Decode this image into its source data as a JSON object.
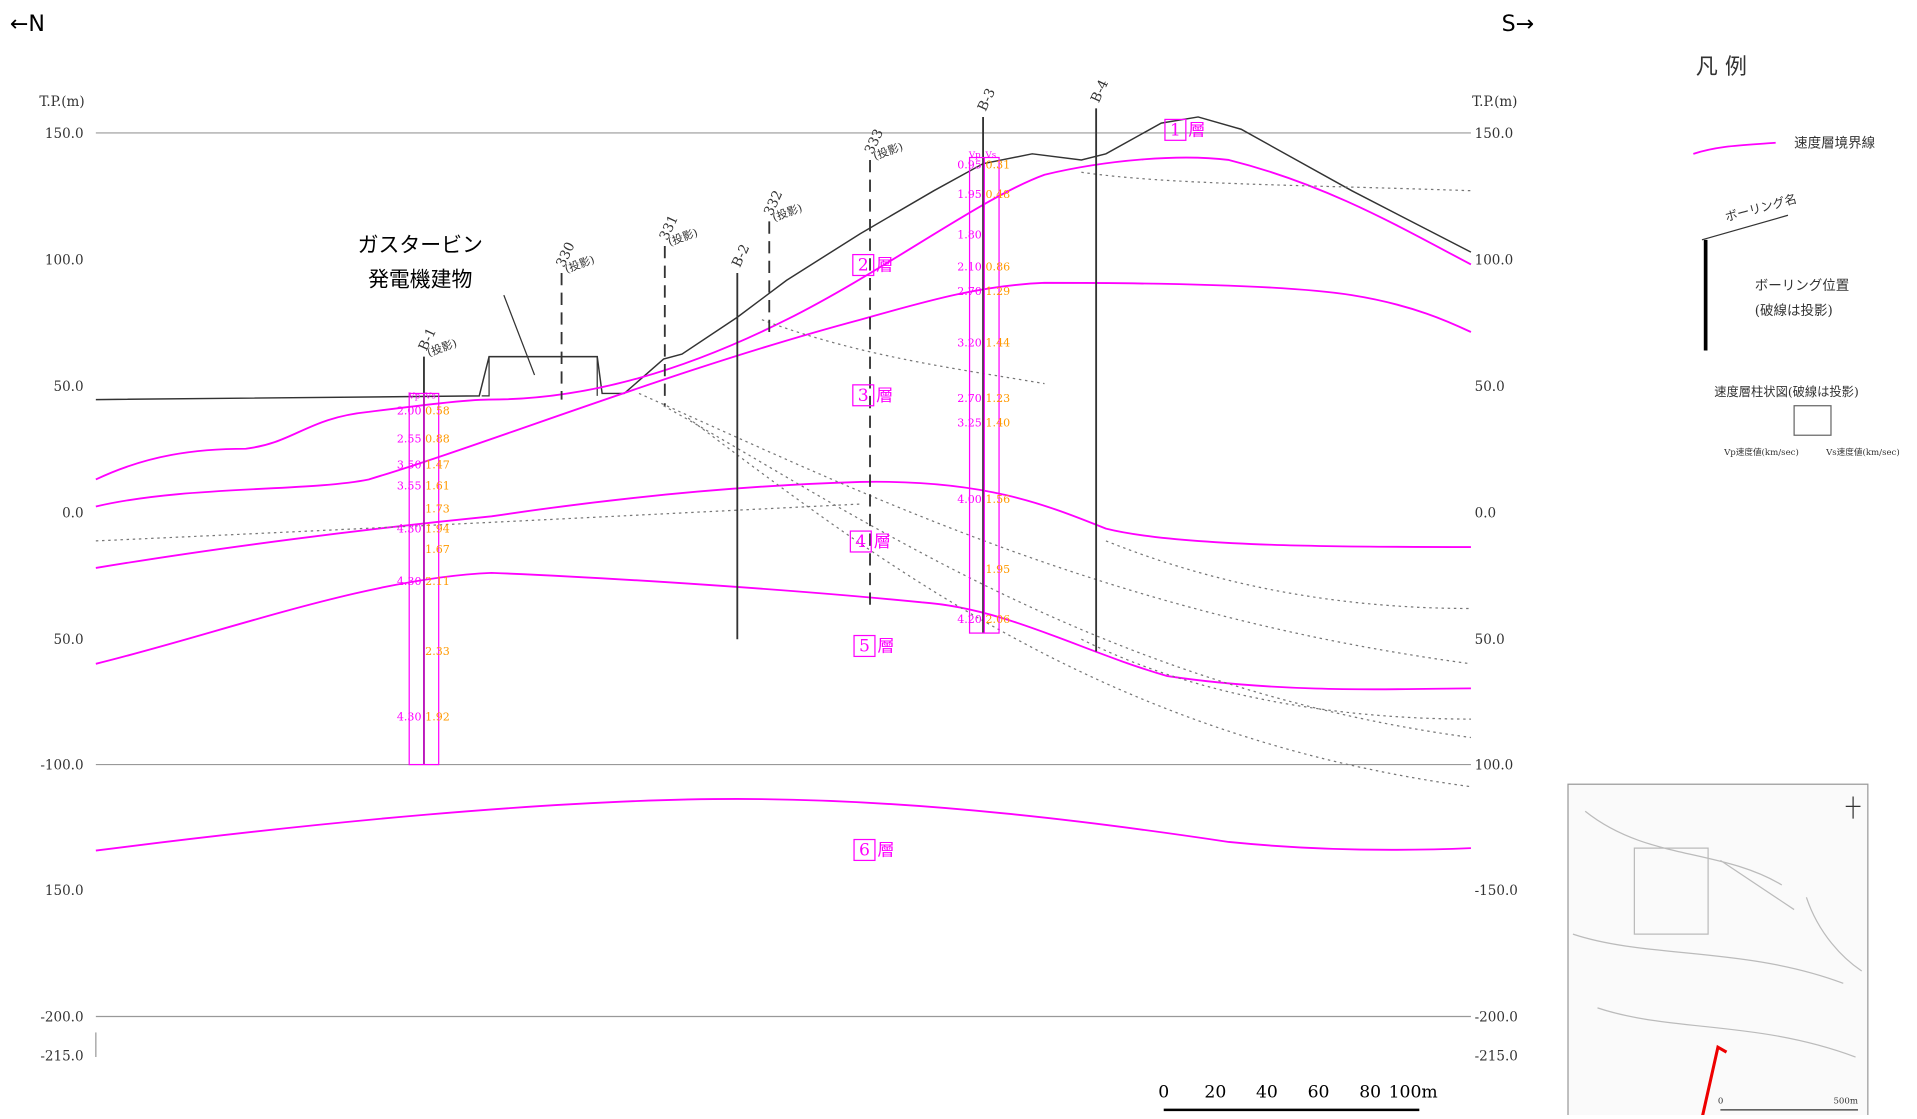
{
  "direction": {
    "left": "←N",
    "right": "S→"
  },
  "axis": {
    "left_unit": "T.P.(m)",
    "right_unit": "T.P.(m)",
    "left_labels": [
      "150.0",
      "100.0",
      "50.0",
      "0.0",
      "50.0",
      "-100.0",
      "150.0",
      "-200.0",
      "-215.0"
    ],
    "right_labels": [
      "150.0",
      "100.0",
      "50.0",
      "0.0",
      "50.0",
      "100.0",
      "-150.0",
      "-200.0",
      "-215.0"
    ]
  },
  "building": {
    "line1": "ガスタービン",
    "line2": "発電機建物"
  },
  "boreholes": [
    {
      "name": "B-1",
      "note": "(投影)"
    },
    {
      "name": "330",
      "note": "(投影)"
    },
    {
      "name": "331",
      "note": "(投影)"
    },
    {
      "name": "332",
      "note": "(投影)"
    },
    {
      "name": "B-2"
    },
    {
      "name": "333",
      "note": "(投影)"
    },
    {
      "name": "B-3"
    },
    {
      "name": "B-4"
    }
  ],
  "layers": [
    "1",
    "2",
    "3",
    "4",
    "5",
    "6"
  ],
  "layer_suffix": "層",
  "columns": [
    {
      "header_vp": "Vp",
      "header_vs": "Vs",
      "rows": [
        {
          "vp": "2.00",
          "vs": "0.58"
        },
        {
          "vp": "2.55",
          "vs": "0.88"
        },
        {
          "vp": "3.50",
          "vs": "1.47"
        },
        {
          "vp": "3.55",
          "vs": "1.61"
        },
        {
          "vs": "1.73"
        },
        {
          "vp": "4.30",
          "vs": "1.94"
        },
        {
          "vs": "1.67"
        },
        {
          "vp": "4.30",
          "vs": "2.11"
        },
        {
          "vs": "2.33"
        },
        {
          "vp": "4.30",
          "vs": "1.92"
        }
      ]
    },
    {
      "header_vp": "Vp",
      "header_vs": "Vs",
      "rows": [
        {
          "vp": "0.95",
          "vs": "0.31"
        },
        {
          "vp": "1.95",
          "vs": "0.48"
        },
        {
          "vp": "1.80"
        },
        {
          "vp": "2.10",
          "vs": "0.86"
        },
        {
          "vp": "2.70",
          "vs": "1.29"
        },
        {
          "vp": "3.20",
          "vs": "1.44"
        },
        {
          "vp": "2.70",
          "vs": "1.23"
        },
        {
          "vp": "3.25",
          "vs": "1.40"
        },
        {
          "vp": "4.00",
          "vs": "1.56"
        },
        {
          "vs": "1.95"
        },
        {
          "vp": "4.20",
          "vs": "2.06"
        }
      ]
    }
  ],
  "legend": {
    "title": "凡 例",
    "boundary": "速度層境界線",
    "boring_name": "ボーリング名",
    "boring_pos1": "ボーリング位置",
    "boring_pos2": "(破線は投影)",
    "column_title": "速度層柱状図(破線は投影)",
    "vp_note": "Vp速度値(km/sec)",
    "vs_note": "Vs速度値(km/sec)"
  },
  "scale": [
    "0",
    "20",
    "40",
    "60",
    "80",
    "100m"
  ],
  "map": {
    "scale_start": "0",
    "scale_end": "500m"
  }
}
